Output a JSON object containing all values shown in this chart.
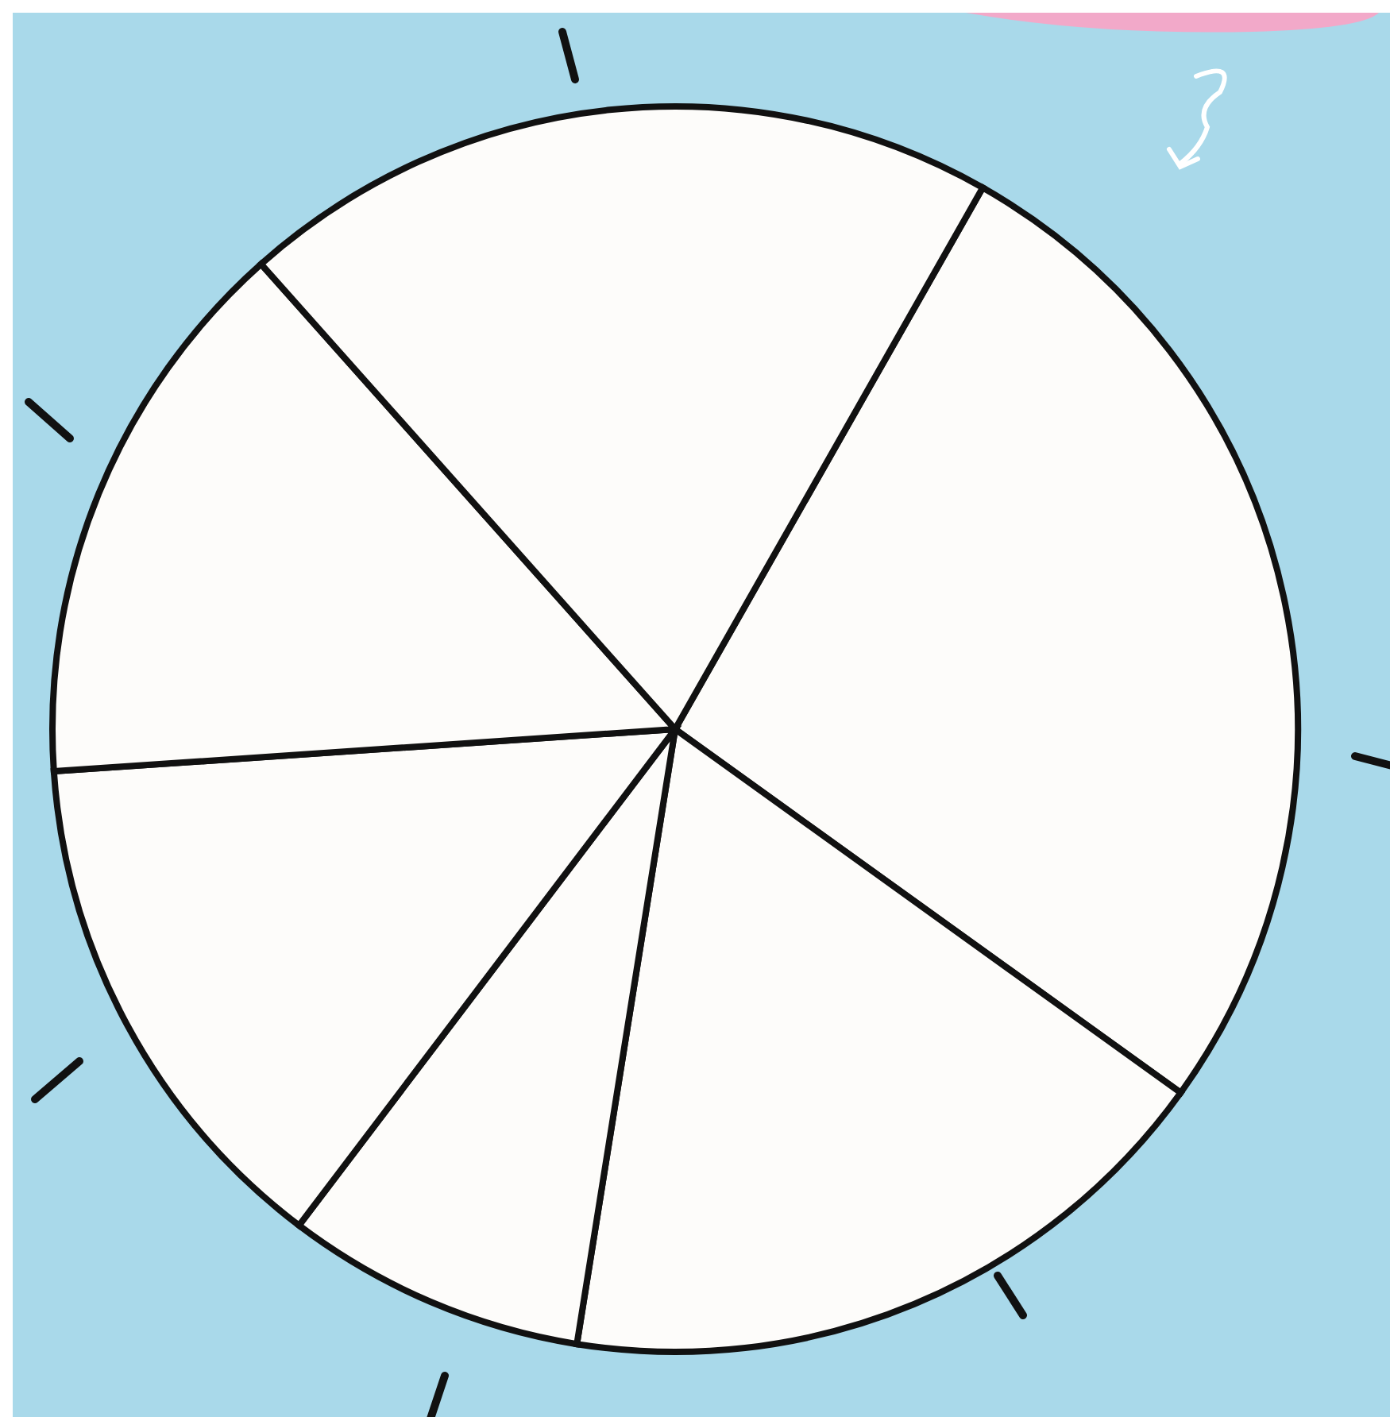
{
  "chart_data": {
    "type": "pie",
    "categories": [
      null,
      null,
      null,
      null,
      null,
      null
    ],
    "values": [
      26.7,
      17.6,
      7.8,
      13.6,
      14.5,
      19.8
    ],
    "colors": [
      "#fdfcfa",
      "#fdfcfa",
      "#fdfcfa",
      "#fdfcfa",
      "#fdfcfa",
      "#fdfcfa"
    ]
  }
}
